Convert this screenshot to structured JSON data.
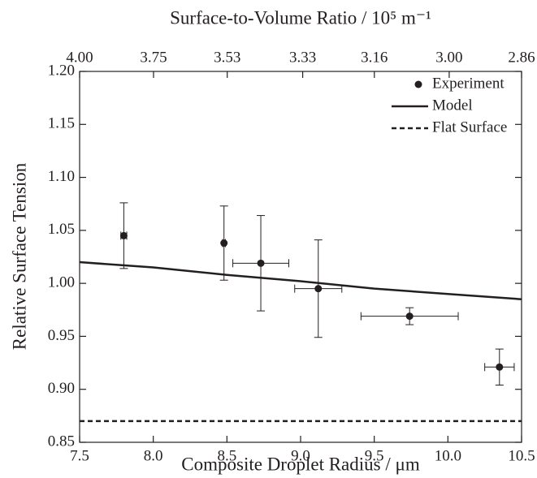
{
  "chart_data": {
    "type": "scatter",
    "xlabel": "Composite Droplet Radius / μm",
    "ylabel": "Relative Surface Tension",
    "x2label": "Surface-to-Volume Ratio / 10⁵ m⁻¹",
    "xlim": [
      7.5,
      10.5
    ],
    "xticks": [
      7.5,
      {
        "value": 8,
        "label": "8.0"
      },
      8.5,
      {
        "value": 9,
        "label": "9.0"
      },
      9.5,
      {
        "value": 10,
        "label": "10.0"
      },
      10.5
    ],
    "x2lim": [
      4,
      2.86
    ],
    "x2scale": "reciprocal",
    "x2ticks": [
      {
        "value": 4,
        "label": "4.00"
      },
      3.75,
      3.53,
      3.33,
      3.16,
      {
        "value": 3,
        "label": "3.00"
      },
      2.86
    ],
    "ylim": [
      0.85,
      1.2
    ],
    "yticks": [
      0.85,
      {
        "value": 0.9,
        "label": "0.90"
      },
      0.95,
      {
        "value": 1,
        "label": "1.00"
      },
      1.05,
      {
        "value": 1.1,
        "label": "1.10"
      },
      1.15,
      {
        "value": 1.2,
        "label": "1.20"
      }
    ],
    "legend": "upper right",
    "series": [
      {
        "name": "Experiment",
        "type": "scatter",
        "color": "#231f20",
        "x": [
          7.8,
          8.48,
          8.73,
          9.12,
          9.74,
          10.35
        ],
        "values": [
          1.045,
          1.038,
          1.019,
          0.995,
          0.969,
          0.921
        ],
        "xerr": [
          0.02,
          0.01,
          0.19,
          0.16,
          0.33,
          0.1
        ],
        "yerr": [
          0.031,
          0.035,
          0.045,
          0.046,
          0.008,
          0.017
        ]
      },
      {
        "name": "Model",
        "type": "line",
        "color": "#231f20",
        "dash": "solid",
        "x": [
          7.5,
          8,
          8.5,
          9,
          9.5,
          10,
          10.5
        ],
        "values": [
          1.02,
          1.015,
          1.008,
          1.002,
          0.995,
          0.99,
          0.985
        ]
      },
      {
        "name": "Flat Surface",
        "type": "line",
        "color": "#231f20",
        "dash": "dashed",
        "x": [
          7.5,
          10.5
        ],
        "values": [
          0.87,
          0.87
        ]
      }
    ]
  }
}
